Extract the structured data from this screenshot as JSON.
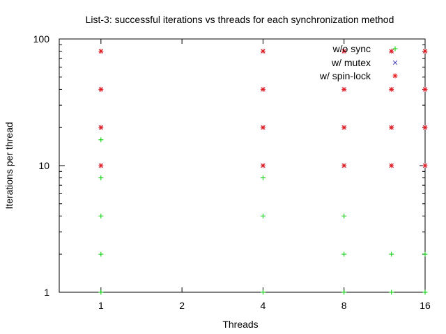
{
  "chart_data": {
    "type": "scatter",
    "title": "List-3: successful iterations vs threads for each synchronization method",
    "xlabel": "Threads",
    "ylabel": "Iterations per thread",
    "xscale": "log2",
    "yscale": "log10",
    "xlim": [
      0.7,
      16
    ],
    "ylim": [
      1,
      100
    ],
    "xticks": [
      1,
      2,
      4,
      8,
      16
    ],
    "xtick_labels": [
      "1",
      "2",
      "4",
      "8",
      "16"
    ],
    "yticks": [
      1,
      10,
      100
    ],
    "ytick_labels": [
      "1",
      "10",
      "100"
    ],
    "grid": false,
    "legend_position": "top-right",
    "series": [
      {
        "name": "w/o sync",
        "marker": "plus",
        "color": "#00cc00",
        "points": [
          [
            1,
            1
          ],
          [
            1,
            2
          ],
          [
            1,
            4
          ],
          [
            1,
            8
          ],
          [
            1,
            16
          ],
          [
            4,
            1
          ],
          [
            4,
            4
          ],
          [
            4,
            8
          ],
          [
            8,
            1
          ],
          [
            8,
            2
          ],
          [
            8,
            4
          ],
          [
            12,
            1
          ],
          [
            12,
            2
          ],
          [
            16,
            1
          ],
          [
            16,
            2
          ]
        ]
      },
      {
        "name": "w/ mutex",
        "marker": "x",
        "color": "#3333aa",
        "points": [
          [
            1,
            10
          ],
          [
            1,
            20
          ],
          [
            1,
            40
          ],
          [
            1,
            80
          ],
          [
            4,
            10
          ],
          [
            4,
            20
          ],
          [
            4,
            40
          ],
          [
            4,
            80
          ],
          [
            8,
            10
          ],
          [
            8,
            20
          ],
          [
            8,
            40
          ],
          [
            8,
            80
          ],
          [
            12,
            10
          ],
          [
            12,
            20
          ],
          [
            12,
            40
          ],
          [
            12,
            80
          ],
          [
            16,
            10
          ],
          [
            16,
            20
          ],
          [
            16,
            40
          ],
          [
            16,
            80
          ]
        ]
      },
      {
        "name": "w/ spin-lock",
        "marker": "star",
        "color": "#e41a1c",
        "points": [
          [
            1,
            10
          ],
          [
            1,
            20
          ],
          [
            1,
            40
          ],
          [
            1,
            80
          ],
          [
            4,
            10
          ],
          [
            4,
            20
          ],
          [
            4,
            40
          ],
          [
            4,
            80
          ],
          [
            8,
            10
          ],
          [
            8,
            20
          ],
          [
            8,
            40
          ],
          [
            8,
            80
          ],
          [
            12,
            10
          ],
          [
            12,
            20
          ],
          [
            12,
            40
          ],
          [
            12,
            80
          ],
          [
            16,
            10
          ],
          [
            16,
            20
          ],
          [
            16,
            40
          ],
          [
            16,
            80
          ]
        ]
      }
    ]
  }
}
